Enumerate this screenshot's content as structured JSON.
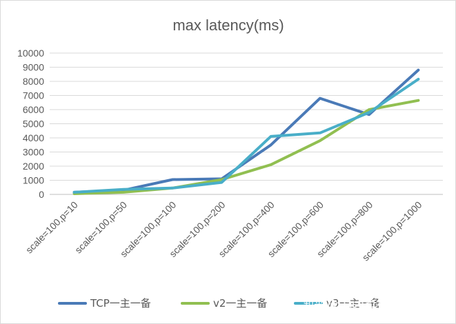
{
  "chart_data": {
    "type": "line",
    "title": "max latency(ms)",
    "xlabel": "",
    "ylabel": "",
    "ylim": [
      0,
      10000
    ],
    "yticks": [
      0,
      1000,
      2000,
      3000,
      4000,
      5000,
      6000,
      7000,
      8000,
      9000,
      10000
    ],
    "ytick_labels": [
      "0",
      "1000",
      "2000",
      "3000",
      "4000",
      "5000",
      "6000",
      "7000",
      "8000",
      "9000",
      "10000"
    ],
    "grid": true,
    "legend_position": "bottom",
    "categories": [
      "scale=100,p=10",
      "scale=100,p=50",
      "scale=100,p=100",
      "scale=100,p=200",
      "scale=100,p=400",
      "scale=100,p=600",
      "scale=100,p=800",
      "scale=100,p=1000"
    ],
    "series": [
      {
        "name": "TCP一主一备",
        "color": "#4a7ab7",
        "values": [
          150,
          300,
          1050,
          1100,
          3500,
          6800,
          5650,
          8800
        ]
      },
      {
        "name": "v2一主一备",
        "color": "#91bf51",
        "values": [
          50,
          150,
          450,
          1050,
          2100,
          3800,
          6000,
          6650
        ]
      },
      {
        "name": "v3一主一备",
        "color": "#49aec8",
        "values": [
          150,
          350,
          450,
          850,
          4100,
          4350,
          5800,
          8150
        ]
      }
    ]
  },
  "watermark": "知乎 @Dase314-ECNU"
}
